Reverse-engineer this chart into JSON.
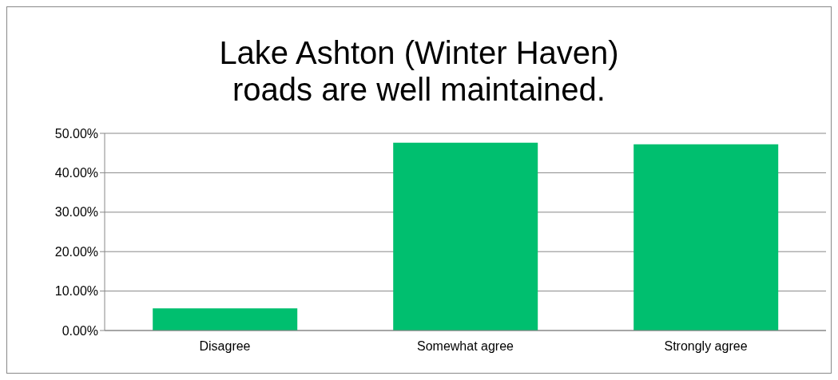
{
  "chart_data": {
    "type": "bar",
    "title": "Lake Ashton (Winter Haven) roads are well maintained.",
    "categories": [
      "Disagree",
      "Somewhat agree",
      "Strongly agree"
    ],
    "values": [
      5.6,
      47.6,
      47.2
    ],
    "color": "#00bf6f",
    "ylim": [
      0,
      50
    ],
    "yticks": [
      {
        "value": 0,
        "label": "0.00%"
      },
      {
        "value": 10,
        "label": "10.00%"
      },
      {
        "value": 20,
        "label": "20.00%"
      },
      {
        "value": 30,
        "label": "30.00%"
      },
      {
        "value": 40,
        "label": "40.00%"
      },
      {
        "value": 50,
        "label": "50.00%"
      }
    ],
    "grid": "y",
    "legend": false
  }
}
